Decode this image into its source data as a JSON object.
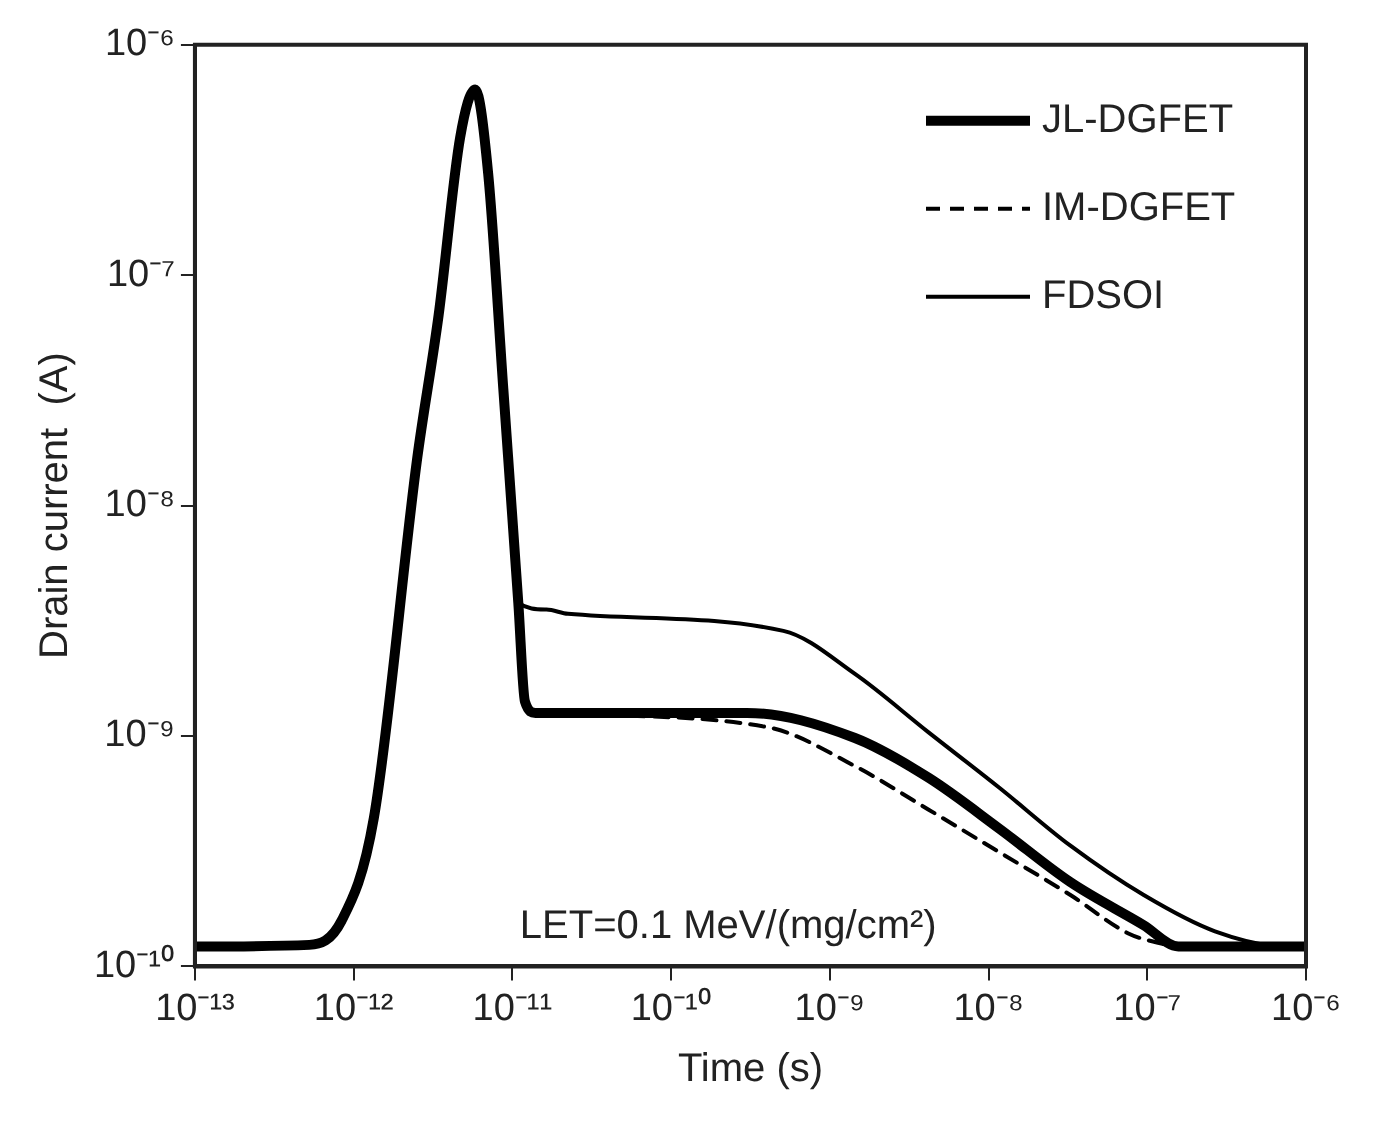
{
  "chart_data": {
    "type": "line",
    "xlabel": "Time (s)",
    "ylabel": "Drain current  (A)",
    "log": "xy",
    "grid": false,
    "legend": "top right",
    "marker": "none",
    "xlim": [
      1e-13,
      1e-06
    ],
    "ylim": [
      1e-10,
      1e-06
    ],
    "xticks": [
      {
        "value": 1e-13,
        "label": "10⁻¹³"
      },
      {
        "value": 1e-12,
        "label": "10⁻¹²"
      },
      {
        "value": 1e-11,
        "label": "10⁻¹¹"
      },
      {
        "value": 1e-10,
        "label": "10⁻¹⁰"
      },
      {
        "value": 1e-09,
        "label": "10⁻⁹"
      },
      {
        "value": 1e-08,
        "label": "10⁻⁸"
      },
      {
        "value": 1e-07,
        "label": "10⁻⁷"
      },
      {
        "value": 1e-06,
        "label": "10⁻⁶"
      }
    ],
    "yticks": [
      {
        "value": 1e-10,
        "label": "10⁻¹⁰"
      },
      {
        "value": 1e-09,
        "label": "10⁻⁹"
      },
      {
        "value": 1e-08,
        "label": "10⁻⁸"
      },
      {
        "value": 1e-07,
        "label": "10⁻⁷"
      },
      {
        "value": 1e-06,
        "label": "10⁻⁶"
      }
    ],
    "annotations": [
      "LET=0.1 MeV/(mg/cm²)"
    ],
    "series": [
      {
        "name": "JL-DGFET",
        "color": "#000000",
        "line_style": "solid",
        "x": [
          1e-13,
          5.25e-13,
          8.4e-13,
          1.34e-12,
          2.51e-12,
          3.43e-12,
          4.69e-12,
          5.83e-12,
          7.04e-12,
          8.77e-12,
          1.09e-11,
          1.2e-11,
          1.4e-11,
          3e-10,
          1.44e-09,
          4.17e-09,
          1.17e-08,
          3.28e-08,
          9.5e-08,
          1.57e-07,
          1e-06
        ],
        "values": [
          1.22e-10,
          1.24e-10,
          1.58e-10,
          4.4e-10,
          1.59e-08,
          6.7e-08,
          3.97e-07,
          6.4e-07,
          2.76e-07,
          3.2e-08,
          3.78e-09,
          1.41e-09,
          1.26e-09,
          1.26e-09,
          9.8e-10,
          6.6e-10,
          3.96e-10,
          2.32e-10,
          1.51e-10,
          1.22e-10,
          1.22e-10
        ]
      },
      {
        "name": "IM-DGFET",
        "color": "#000000",
        "line_style": "dashed",
        "x": [
          1e-13,
          5.25e-13,
          8.4e-13,
          1.34e-12,
          2.51e-12,
          3.43e-12,
          4.69e-12,
          5.83e-12,
          7.04e-12,
          8.77e-12,
          1.09e-11,
          1.2e-11,
          1.4e-11,
          4.1e-10,
          1.44e-09,
          4.17e-09,
          1.17e-08,
          3.28e-08,
          7.6e-08,
          1.15e-07,
          1.57e-07,
          1e-06
        ],
        "values": [
          1.22e-10,
          1.24e-10,
          1.58e-10,
          4.4e-10,
          1.59e-08,
          6.7e-08,
          3.97e-07,
          6.4e-07,
          2.76e-07,
          3.2e-08,
          3.78e-09,
          1.41e-09,
          1.29e-09,
          1.09e-09,
          7.4e-10,
          4.8e-10,
          3.13e-10,
          2.04e-10,
          1.39e-10,
          1.27e-10,
          1.22e-10,
          1.22e-10
        ]
      },
      {
        "name": "FDSOI",
        "color": "#000000",
        "line_style": "solid",
        "x": [
          1e-13,
          5.25e-13,
          8.4e-13,
          1.34e-12,
          2.51e-12,
          3.43e-12,
          4.69e-12,
          5.83e-12,
          7.04e-12,
          8.77e-12,
          1.09e-11,
          1.64e-11,
          2.24e-11,
          5.1e-10,
          1.44e-09,
          4.17e-09,
          1.17e-08,
          3.28e-08,
          9.5e-08,
          2.67e-07,
          7.5e-07,
          1e-06
        ],
        "values": [
          1.22e-10,
          1.24e-10,
          1.58e-10,
          4.4e-10,
          1.59e-08,
          6.7e-08,
          3.97e-07,
          6.4e-07,
          2.76e-07,
          3.2e-08,
          3.78e-09,
          3.54e-09,
          3.39e-09,
          2.86e-09,
          1.86e-09,
          1.04e-09,
          5.96e-10,
          3.34e-10,
          2.04e-10,
          1.42e-10,
          1.22e-10,
          1.22e-10
        ]
      }
    ]
  }
}
